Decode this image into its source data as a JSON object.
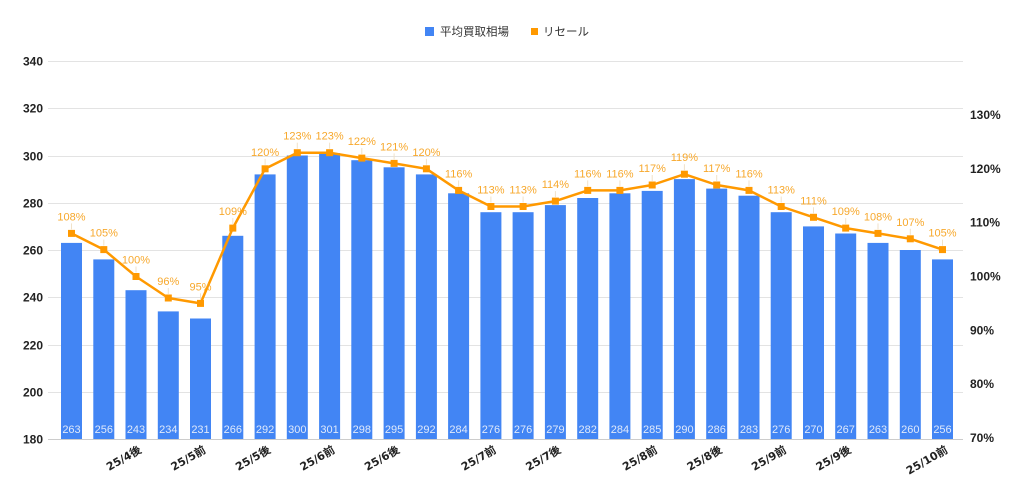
{
  "legend": {
    "bar_label": "平均買取相場",
    "line_label": "リセール"
  },
  "colors": {
    "bar": "#4285f4",
    "line": "#ff9900",
    "line_label": "#f7a82c",
    "grid": "#e3e3e3",
    "axis_text": "#222222"
  },
  "chart_data": {
    "type": "bar+line",
    "title": "",
    "xlabel": "",
    "ylabel": "",
    "ylabel_right": "",
    "legend_position": "top",
    "grid": true,
    "categories": [
      "",
      "",
      "25/4後",
      "",
      "25/5前",
      "",
      "25/5後",
      "",
      "25/6前",
      "",
      "25/6後",
      "",
      "",
      "25/7前",
      "",
      "25/7後",
      "",
      "",
      "25/8前",
      "",
      "25/8後",
      "",
      "25/9前",
      "",
      "25/9後",
      "",
      "",
      "25/10前"
    ],
    "series": [
      {
        "name": "平均買取相場",
        "type": "bar",
        "axis": "left",
        "values": [
          263,
          256,
          243,
          234,
          231,
          266,
          292,
          300,
          301,
          298,
          295,
          292,
          284,
          276,
          276,
          279,
          282,
          284,
          285,
          290,
          286,
          283,
          276,
          270,
          267,
          263,
          260,
          256
        ]
      },
      {
        "name": "リセール",
        "type": "line",
        "axis": "right",
        "unit": "%",
        "values": [
          108,
          105,
          100,
          96,
          95,
          109,
          120,
          123,
          123,
          122,
          121,
          120,
          116,
          113,
          113,
          114,
          116,
          116,
          117,
          119,
          117,
          116,
          113,
          111,
          109,
          108,
          107,
          105
        ]
      }
    ],
    "ylim": [
      180,
      340
    ],
    "yticks": [
      180,
      200,
      220,
      240,
      260,
      280,
      300,
      320,
      340
    ],
    "ylim_right": [
      70,
      130
    ],
    "yticks_right": [
      "70%",
      "80%",
      "90%",
      "100%",
      "110%",
      "120%",
      "130%"
    ]
  }
}
